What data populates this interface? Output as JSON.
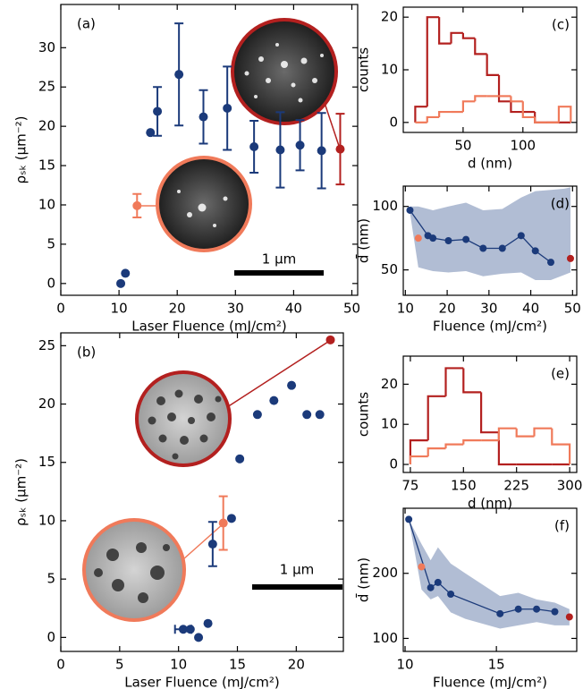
{
  "chart_data": [
    {
      "type": "scatter",
      "panel_label": "(a)",
      "xlabel": "Laser Fluence (mJ/cm²)",
      "ylabel": "ρₛₖ (μm⁻²)",
      "scale_bar": "1 μm",
      "xlim": [
        0,
        51
      ],
      "ylim": [
        -1.5,
        35.5
      ],
      "xticks": [
        0,
        10,
        20,
        30,
        40,
        50
      ],
      "yticks": [
        0,
        5,
        10,
        15,
        20,
        25,
        30
      ],
      "series": [
        {
          "color": "#1b3a7a",
          "x": [
            10.3,
            11.1,
            15.4,
            16.6,
            20.3,
            24.5,
            28.6,
            33.2,
            37.7,
            41.1,
            44.8
          ],
          "values": [
            0,
            1.3,
            19.2,
            21.9,
            26.6,
            21.2,
            22.3,
            17.4,
            17,
            17.6,
            16.9
          ],
          "errors": [
            null,
            null,
            null,
            3.1,
            6.5,
            3.4,
            5.3,
            3.3,
            4.8,
            3.2,
            4.8
          ]
        },
        {
          "color": "#f07a5a",
          "x": [
            13.1
          ],
          "values": [
            9.9
          ],
          "errors": [
            1.5
          ]
        },
        {
          "color": "#b3201f",
          "x": [
            48
          ],
          "values": [
            17.1
          ],
          "errors": [
            4.5
          ]
        }
      ]
    },
    {
      "type": "scatter",
      "panel_label": "(b)",
      "xlabel": "Laser Fluence (mJ/cm²)",
      "ylabel": "ρₛₖ (μm⁻²)",
      "scale_bar": "1 μm",
      "xlim": [
        0,
        24
      ],
      "ylim": [
        -1.2,
        26.1
      ],
      "xticks": [
        0,
        5,
        10,
        15,
        20
      ],
      "yticks": [
        0,
        5,
        10,
        15,
        20,
        25
      ],
      "series": [
        {
          "color": "#1b3a7a",
          "x": [
            10.4,
            11.0,
            11.7,
            12.5,
            12.9,
            14.5,
            15.2,
            16.7,
            18.1,
            19.6,
            20.9,
            22.0
          ],
          "values": [
            0.7,
            0.7,
            0,
            1.2,
            8.0,
            10.2,
            15.3,
            19.1,
            20.3,
            21.6,
            19.1,
            19.1
          ],
          "errors": [
            null,
            null,
            null,
            null,
            1.9,
            null,
            null,
            null,
            null,
            null,
            null,
            null
          ],
          "xerr": [
            0.7,
            null,
            null,
            null,
            null,
            null,
            null,
            null,
            null,
            null,
            null,
            null
          ]
        },
        {
          "color": "#f07a5a",
          "x": [
            13.8
          ],
          "values": [
            9.8
          ],
          "errors": [
            2.3
          ]
        },
        {
          "color": "#b3201f",
          "x": [
            22.9
          ],
          "values": [
            25.5
          ],
          "errors": [
            null
          ]
        }
      ]
    },
    {
      "type": "histogram",
      "panel_label": "(c)",
      "xlabel": "d (nm)",
      "ylabel": "counts",
      "xlim": [
        0,
        145
      ],
      "ylim": [
        -1.9,
        21.9
      ],
      "xticks": [
        50,
        100
      ],
      "yticks": [
        0,
        10,
        20
      ],
      "bins": [
        10,
        20,
        30,
        40,
        50,
        60,
        70,
        80,
        90,
        100,
        110,
        120,
        130,
        140
      ],
      "series": [
        {
          "color": "#b3201f",
          "values": [
            3,
            20,
            15,
            17,
            16,
            13,
            9,
            4,
            2,
            2,
            0,
            0,
            0
          ]
        },
        {
          "color": "#f07a5a",
          "values": [
            0,
            1,
            2,
            2,
            4,
            5,
            5,
            5,
            4,
            1,
            0,
            0,
            3
          ]
        }
      ]
    },
    {
      "type": "line",
      "panel_label": "(d)",
      "xlabel": "Fluence (mJ/cm²)",
      "ylabel": "d̄ (nm)",
      "xlim": [
        9.5,
        51
      ],
      "ylim": [
        30,
        116
      ],
      "xticks": [
        10,
        20,
        30,
        40,
        50
      ],
      "yticks": [
        50,
        100
      ],
      "band": {
        "color": "#a3b1cc",
        "x": [
          11.1,
          13.1,
          15.4,
          16.6,
          20.3,
          24.5,
          28.6,
          33.2,
          37.7,
          41.1,
          44.8,
          48,
          49.5
        ],
        "lower": [
          95,
          52,
          50,
          49,
          48,
          49,
          45,
          47,
          48,
          42,
          42,
          46,
          48
        ],
        "upper": [
          100,
          100,
          98,
          97,
          100,
          103,
          97,
          98,
          107,
          112,
          113,
          114,
          115
        ]
      },
      "series": [
        {
          "color": "#1b3a7a",
          "x": [
            11.1,
            15.4,
            16.6,
            20.3,
            24.5,
            28.6,
            33.2,
            37.7,
            41.1,
            44.8
          ],
          "values": [
            97,
            77,
            75,
            73,
            74,
            67,
            67,
            77,
            65,
            56
          ]
        },
        {
          "color": "#f07a5a",
          "x": [
            13.1
          ],
          "values": [
            75
          ]
        },
        {
          "color": "#b3201f",
          "x": [
            49.5
          ],
          "values": [
            59
          ]
        }
      ]
    },
    {
      "type": "histogram",
      "panel_label": "(e)",
      "xlabel": "d (nm)",
      "ylabel": "counts",
      "xlim": [
        65,
        310
      ],
      "ylim": [
        -2,
        27
      ],
      "xticks": [
        75,
        150,
        225,
        300
      ],
      "yticks": [
        0,
        10,
        20
      ],
      "bins": [
        75,
        100,
        125,
        150,
        175,
        200,
        225,
        250,
        275,
        300
      ],
      "series": [
        {
          "color": "#b3201f",
          "values": [
            6,
            17,
            24,
            18,
            8,
            0,
            0,
            0,
            0
          ]
        },
        {
          "color": "#f07a5a",
          "values": [
            2,
            4,
            5,
            6,
            6,
            9,
            7,
            9,
            5
          ]
        }
      ]
    },
    {
      "type": "line",
      "panel_label": "(f)",
      "xlabel": "Fluence (mJ/cm²)",
      "ylabel": "d̄ (nm)",
      "xlim": [
        9.9,
        19.4
      ],
      "ylim": [
        80,
        300
      ],
      "xticks": [
        10,
        15
      ],
      "yticks": [
        100,
        200
      ],
      "band": {
        "color": "#a3b1cc",
        "x": [
          10.2,
          10.9,
          11.4,
          11.8,
          12.5,
          13.3,
          15.2,
          16.2,
          17.2,
          18.2,
          19.0
        ],
        "lower": [
          283,
          175,
          160,
          165,
          140,
          130,
          115,
          120,
          125,
          120,
          120
        ],
        "upper": [
          283,
          245,
          220,
          240,
          215,
          200,
          165,
          170,
          160,
          155,
          145
        ]
      },
      "series": [
        {
          "color": "#1b3a7a",
          "x": [
            10.2,
            11.4,
            11.8,
            12.5,
            15.2,
            16.2,
            17.2,
            18.2
          ],
          "values": [
            283,
            178,
            186,
            168,
            138,
            145,
            145,
            141
          ]
        },
        {
          "color": "#f07a5a",
          "x": [
            10.9
          ],
          "values": [
            210
          ]
        },
        {
          "color": "#b3201f",
          "x": [
            19.0
          ],
          "values": [
            133
          ]
        }
      ]
    }
  ]
}
